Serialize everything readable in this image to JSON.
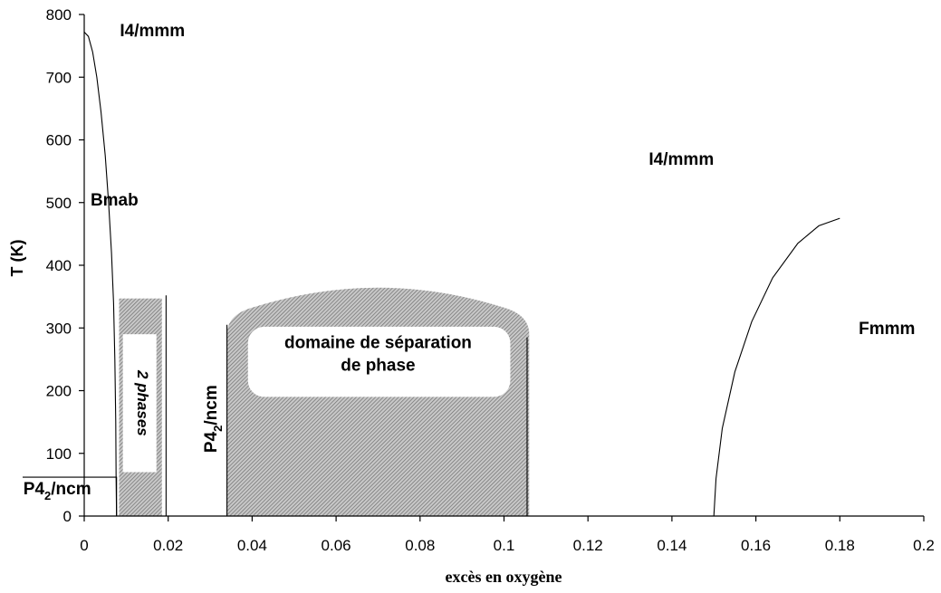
{
  "chart_data": {
    "type": "phase-diagram",
    "xlabel": "excès en oxygène",
    "ylabel": "T (K)",
    "xlim": [
      0,
      0.2
    ],
    "ylim": [
      0,
      800
    ],
    "x_ticks": [
      "0",
      "0.02",
      "0.04",
      "0.06",
      "0.08",
      "0.1",
      "0.12",
      "0.14",
      "0.16",
      "0.18",
      "0.2"
    ],
    "x_tick_values": [
      0,
      0.02,
      0.04,
      0.06,
      0.08,
      0.1,
      0.12,
      0.14,
      0.16,
      0.18,
      0.2
    ],
    "y_ticks": [
      "0",
      "100",
      "200",
      "300",
      "400",
      "500",
      "600",
      "700",
      "800"
    ],
    "y_tick_values": [
      0,
      100,
      200,
      300,
      400,
      500,
      600,
      700,
      800
    ],
    "grid": false,
    "regions": {
      "i4mmm_left": {
        "label": "I4/mmm",
        "x": 0.0085,
        "y": 765
      },
      "i4mmm_right": {
        "label": "I4/mmm",
        "x": 0.1345,
        "y": 560
      },
      "bmab": {
        "label": "Bmab",
        "x": 0.0015,
        "y": 495
      },
      "fmmm": {
        "label": "Fmmm",
        "x": 0.1845,
        "y": 290
      },
      "p42ncm_low": {
        "main": "P4",
        "sub": "2",
        "rest": "/ncm",
        "x": -0.0145,
        "y": 35
      },
      "p42ncm_mid": {
        "main": "P4",
        "sub": "2",
        "rest": "/ncm",
        "x": 0.0315,
        "y": 155
      },
      "two_phases": {
        "label": "2 phases",
        "x": 0.0127,
        "y": 180
      },
      "separation_line1": {
        "label": "domaine de séparation",
        "x": 0.07,
        "y": 268
      },
      "separation_line2": {
        "label": "de phase",
        "x": 0.07,
        "y": 232
      }
    },
    "curves": {
      "bmab_boundary": [
        [
          0,
          772
        ],
        [
          0.001,
          765
        ],
        [
          0.002,
          740
        ],
        [
          0.003,
          700
        ],
        [
          0.004,
          645
        ],
        [
          0.005,
          575
        ],
        [
          0.0058,
          500
        ],
        [
          0.0065,
          420
        ],
        [
          0.007,
          340
        ],
        [
          0.0073,
          250
        ],
        [
          0.0075,
          150
        ],
        [
          0.0076,
          60
        ],
        [
          0.0077,
          0
        ]
      ],
      "fmmm_boundary": [
        [
          0.15,
          0
        ],
        [
          0.1505,
          60
        ],
        [
          0.152,
          140
        ],
        [
          0.155,
          230
        ],
        [
          0.159,
          310
        ],
        [
          0.164,
          380
        ],
        [
          0.17,
          435
        ],
        [
          0.175,
          463
        ],
        [
          0.18,
          475
        ]
      ]
    },
    "p42ncm_low_box": {
      "x0": 0,
      "x1": 0.0077,
      "y0": 0,
      "y1": 62
    },
    "two_phase_box": {
      "x0": 0.0083,
      "x1": 0.0185,
      "y0": 0,
      "y1": 347,
      "divider_x": 0.0195,
      "divider_top": 352
    },
    "inner_white_box": {
      "x0": 0.0092,
      "x1": 0.0172,
      "y0": 70,
      "y1": 290
    },
    "separation_dome": {
      "x0": 0.034,
      "x1": 0.106,
      "base_y": 290,
      "peak_y": 372,
      "inner_box": {
        "x0": 0.039,
        "x1": 0.1015,
        "y0": 190,
        "y1": 302
      },
      "edge_lines": [
        [
          0.034,
          0,
          0.034,
          305
        ],
        [
          0.1055,
          0,
          0.1055,
          285
        ]
      ]
    },
    "hatch_color": "#888888"
  }
}
